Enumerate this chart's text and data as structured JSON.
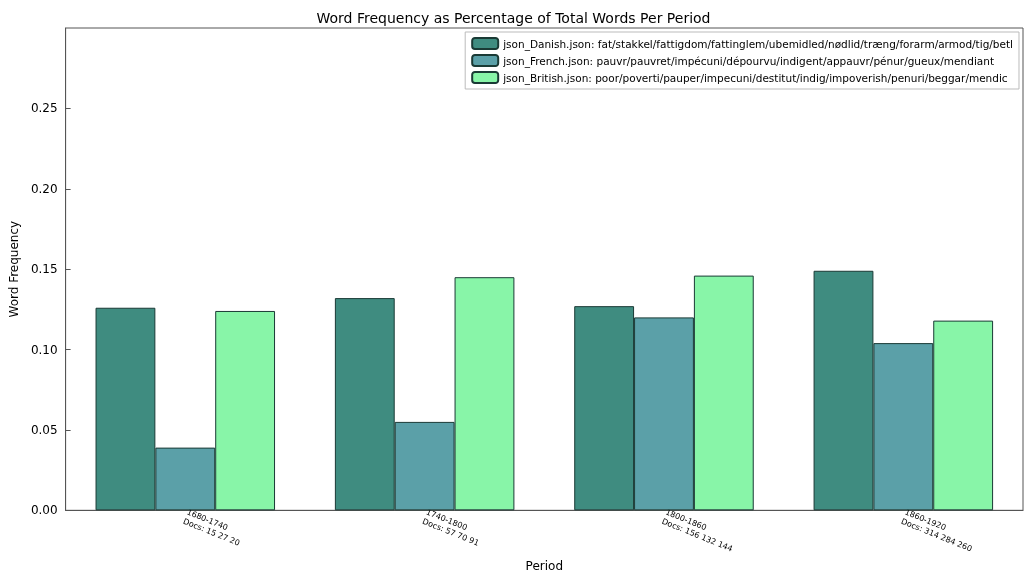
{
  "chart_data": {
    "type": "bar",
    "title": "Word Frequency as Percentage of Total Words Per Period",
    "xlabel": "Period",
    "ylabel": "Word Frequency",
    "categories": [
      "1680-1740\nDocs: 15 27 20",
      "1740-1800\nDocs: 57 70 91",
      "1800-1860\nDocs: 156 132 144",
      "1860-1920\nDocs: 314 284 260"
    ],
    "series": [
      {
        "name": "json_Danish.json: fat/stakkel/fattigdom/fattinglem/ubemidled/nødlid/træng/forarm/armod/tig/betl",
        "color": "#3f8c80",
        "values": [
          0.126,
          0.132,
          0.127,
          0.149
        ]
      },
      {
        "name": "json_French.json: pauvr/pauvret/impécuni/dépourvu/indigent/appauvr/pénur/gueux/mendiant",
        "color": "#5ba0a8",
        "values": [
          0.039,
          0.055,
          0.12,
          0.104
        ]
      },
      {
        "name": "json_British.json: poor/poverti/pauper/impecuni/destitut/indig/impoverish/penuri/beggar/mendic",
        "color": "#88f5a8",
        "values": [
          0.124,
          0.145,
          0.146,
          0.118
        ]
      }
    ],
    "ylim": [
      0,
      0.3
    ],
    "yticks": [
      {
        "value": 0,
        "label": "0.00"
      },
      {
        "value": 0.05,
        "label": "0.05"
      },
      {
        "value": 0.1,
        "label": "0.10"
      },
      {
        "value": 0.15,
        "label": "0.15"
      },
      {
        "value": 0.2,
        "label": "0.20"
      },
      {
        "value": 0.25,
        "label": "0.25"
      }
    ],
    "grid": false,
    "legend": "top right"
  }
}
